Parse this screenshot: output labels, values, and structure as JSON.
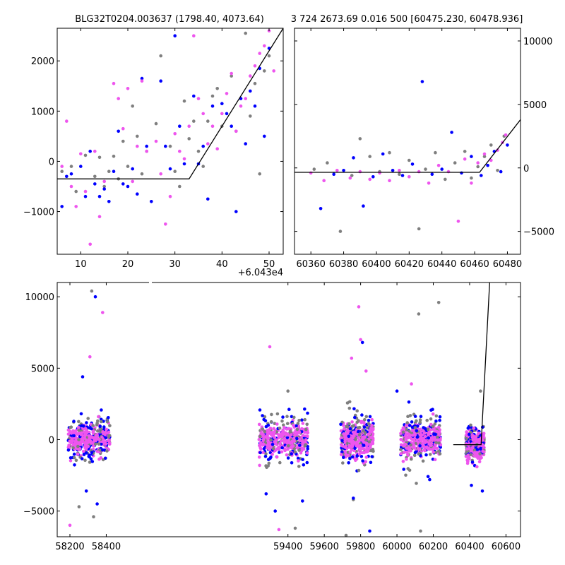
{
  "titles": {
    "left": "BLG32T0204.003637 (1798.40, 4073.64)",
    "right": "3 724 2673.69 0.016 500 [60475.230, 60478.936]"
  },
  "colors": {
    "band1": "#7f7f7f",
    "band2": "#0000ff",
    "band3": "#ee55ee",
    "model": "#000000"
  },
  "chart_data": [
    {
      "id": "zoom-left",
      "type": "scatter",
      "title": "BLG32T0204.003637 (1798.40, 4073.64)",
      "xlabel": "",
      "ylabel": "",
      "x_offset_label": "+6.043e4",
      "xlim": [
        5,
        53
      ],
      "ylim": [
        -1850,
        2650
      ],
      "xticks": [
        10,
        20,
        30,
        40,
        50
      ],
      "yticks": [
        -1000,
        0,
        1000,
        2000
      ],
      "model_line": {
        "x": [
          5,
          33,
          53
        ],
        "y": [
          -350,
          -350,
          2650
        ]
      },
      "series": [
        {
          "color": "#7f7f7f",
          "points": [
            [
              6,
              -200
            ],
            [
              8,
              -100
            ],
            [
              9,
              -600
            ],
            [
              11,
              120
            ],
            [
              13,
              -300
            ],
            [
              14,
              80
            ],
            [
              15,
              -500
            ],
            [
              16,
              -200
            ],
            [
              17,
              100
            ],
            [
              18,
              -350
            ],
            [
              19,
              400
            ],
            [
              20,
              -100
            ],
            [
              21,
              1100
            ],
            [
              22,
              500
            ],
            [
              23,
              -250
            ],
            [
              24,
              200
            ],
            [
              26,
              750
            ],
            [
              27,
              2100
            ],
            [
              29,
              300
            ],
            [
              30,
              -200
            ],
            [
              31,
              -500
            ],
            [
              32,
              1200
            ],
            [
              33,
              450
            ],
            [
              34,
              800
            ],
            [
              35,
              200
            ],
            [
              36,
              -100
            ],
            [
              37,
              800
            ],
            [
              38,
              1300
            ],
            [
              39,
              1450
            ],
            [
              40,
              700
            ],
            [
              42,
              1700
            ],
            [
              43,
              600
            ],
            [
              45,
              2550
            ],
            [
              46,
              900
            ],
            [
              47,
              1550
            ],
            [
              48,
              -250
            ],
            [
              49,
              1800
            ],
            [
              50,
              2100
            ]
          ]
        },
        {
          "color": "#0000ff",
          "points": [
            [
              6,
              -900
            ],
            [
              7,
              -300
            ],
            [
              8,
              -250
            ],
            [
              10,
              -100
            ],
            [
              11,
              -700
            ],
            [
              12,
              200
            ],
            [
              13,
              -450
            ],
            [
              14,
              -700
            ],
            [
              15,
              -550
            ],
            [
              16,
              -800
            ],
            [
              17,
              -200
            ],
            [
              18,
              600
            ],
            [
              19,
              -450
            ],
            [
              20,
              -500
            ],
            [
              21,
              -150
            ],
            [
              22,
              -650
            ],
            [
              23,
              1650
            ],
            [
              24,
              300
            ],
            [
              25,
              -800
            ],
            [
              27,
              1600
            ],
            [
              28,
              300
            ],
            [
              29,
              -150
            ],
            [
              30,
              2500
            ],
            [
              31,
              700
            ],
            [
              32,
              -50
            ],
            [
              34,
              1300
            ],
            [
              35,
              -50
            ],
            [
              36,
              300
            ],
            [
              37,
              -750
            ],
            [
              38,
              1100
            ],
            [
              40,
              1150
            ],
            [
              41,
              950
            ],
            [
              42,
              700
            ],
            [
              43,
              -1000
            ],
            [
              44,
              1250
            ],
            [
              45,
              350
            ],
            [
              46,
              1400
            ],
            [
              47,
              1100
            ],
            [
              48,
              1850
            ],
            [
              49,
              500
            ],
            [
              50,
              2250
            ]
          ]
        },
        {
          "color": "#ee55ee",
          "points": [
            [
              6,
              -100
            ],
            [
              7,
              800
            ],
            [
              8,
              -500
            ],
            [
              9,
              -900
            ],
            [
              10,
              150
            ],
            [
              11,
              -600
            ],
            [
              12,
              -1650
            ],
            [
              13,
              200
            ],
            [
              14,
              -1100
            ],
            [
              15,
              -400
            ],
            [
              17,
              1550
            ],
            [
              18,
              1250
            ],
            [
              19,
              650
            ],
            [
              20,
              1450
            ],
            [
              21,
              -400
            ],
            [
              22,
              300
            ],
            [
              23,
              1600
            ],
            [
              24,
              200
            ],
            [
              26,
              400
            ],
            [
              27,
              -250
            ],
            [
              28,
              -1250
            ],
            [
              29,
              -700
            ],
            [
              30,
              550
            ],
            [
              31,
              200
            ],
            [
              32,
              50
            ],
            [
              33,
              700
            ],
            [
              34,
              2500
            ],
            [
              35,
              1250
            ],
            [
              36,
              950
            ],
            [
              37,
              350
            ],
            [
              38,
              700
            ],
            [
              39,
              250
            ],
            [
              40,
              950
            ],
            [
              41,
              1350
            ],
            [
              42,
              1750
            ],
            [
              43,
              600
            ],
            [
              44,
              1100
            ],
            [
              45,
              1250
            ],
            [
              46,
              1700
            ],
            [
              47,
              1900
            ],
            [
              48,
              2150
            ],
            [
              49,
              2300
            ],
            [
              50,
              2600
            ],
            [
              51,
              1800
            ]
          ]
        }
      ]
    },
    {
      "id": "zoom-right",
      "type": "scatter",
      "title": "3 724 2673.69 0.016 500 [60475.230, 60478.936]",
      "xlabel": "",
      "ylabel": "",
      "xlim": [
        60350,
        60488
      ],
      "ylim": [
        -6800,
        11000
      ],
      "xticks": [
        60360,
        60380,
        60400,
        60420,
        60440,
        60460,
        60480
      ],
      "yticks": [
        -5000,
        0,
        5000,
        10000
      ],
      "model_line": {
        "x": [
          60350,
          60463,
          60488
        ],
        "y": [
          -350,
          -350,
          3800
        ]
      },
      "series": [
        {
          "color": "#7f7f7f",
          "points": [
            [
              60362,
              -100
            ],
            [
              60370,
              400
            ],
            [
              60378,
              -5000
            ],
            [
              60385,
              -600
            ],
            [
              60390,
              2300
            ],
            [
              60396,
              900
            ],
            [
              60402,
              -300
            ],
            [
              60408,
              1200
            ],
            [
              60414,
              -500
            ],
            [
              60420,
              600
            ],
            [
              60426,
              -4800
            ],
            [
              60430,
              -100
            ],
            [
              60436,
              1200
            ],
            [
              60442,
              -900
            ],
            [
              60448,
              400
            ],
            [
              60454,
              1300
            ],
            [
              60458,
              -800
            ],
            [
              60462,
              100
            ],
            [
              60466,
              900
            ],
            [
              60470,
              1800
            ],
            [
              60474,
              -200
            ],
            [
              60478,
              2500
            ]
          ]
        },
        {
          "color": "#0000ff",
          "points": [
            [
              60366,
              -3200
            ],
            [
              60374,
              -500
            ],
            [
              60380,
              -200
            ],
            [
              60386,
              800
            ],
            [
              60392,
              -3000
            ],
            [
              60398,
              -700
            ],
            [
              60404,
              1100
            ],
            [
              60410,
              -200
            ],
            [
              60416,
              -600
            ],
            [
              60422,
              300
            ],
            [
              60428,
              6800
            ],
            [
              60434,
              -500
            ],
            [
              60440,
              -100
            ],
            [
              60446,
              2800
            ],
            [
              60452,
              -400
            ],
            [
              60458,
              900
            ],
            [
              60464,
              -600
            ],
            [
              60468,
              200
            ],
            [
              60472,
              1300
            ],
            [
              60476,
              -300
            ],
            [
              60480,
              1800
            ]
          ]
        },
        {
          "color": "#ee55ee",
          "points": [
            [
              60360,
              -400
            ],
            [
              60368,
              -1000
            ],
            [
              60376,
              -200
            ],
            [
              60384,
              -800
            ],
            [
              60390,
              -300
            ],
            [
              60396,
              -900
            ],
            [
              60402,
              -400
            ],
            [
              60408,
              -1000
            ],
            [
              60414,
              -200
            ],
            [
              60420,
              -700
            ],
            [
              60426,
              -300
            ],
            [
              60432,
              -1200
            ],
            [
              60438,
              200
            ],
            [
              60444,
              -300
            ],
            [
              60450,
              -4200
            ],
            [
              60454,
              700
            ],
            [
              60458,
              -1200
            ],
            [
              60462,
              400
            ],
            [
              60466,
              1100
            ],
            [
              60470,
              600
            ],
            [
              60474,
              1400
            ],
            [
              60477,
              2000
            ],
            [
              60479,
              2600
            ]
          ]
        }
      ]
    },
    {
      "id": "full-lightcurve",
      "type": "scatter",
      "title": "",
      "xlabel": "",
      "ylabel": "",
      "xlim": [
        58130,
        60680
      ],
      "ylim": [
        -6800,
        11000
      ],
      "xticks": [
        58200,
        58400,
        59400,
        59600,
        59800,
        60000,
        60200,
        60400,
        60600
      ],
      "yticks": [
        -5000,
        0,
        5000,
        10000
      ],
      "clusters": [
        {
          "x": [
            58190,
            58420
          ]
        },
        {
          "x": [
            59240,
            59510
          ]
        },
        {
          "x": [
            59690,
            59870
          ]
        },
        {
          "x": [
            60020,
            60240
          ]
        },
        {
          "x": [
            60380,
            60480
          ]
        }
      ],
      "model_line": {
        "x": [
          60310,
          60463,
          60510
        ],
        "y": [
          -350,
          -350,
          11000
        ]
      },
      "series": [
        {
          "color": "#7f7f7f",
          "points": [
            [
              58320,
              10400
            ],
            [
              58250,
              -4700
            ],
            [
              58330,
              -5400
            ],
            [
              59400,
              3400
            ],
            [
              59440,
              -6200
            ],
            [
              59720,
              -6700
            ],
            [
              59760,
              -4200
            ],
            [
              60120,
              8800
            ],
            [
              60130,
              -6400
            ],
            [
              60230,
              9600
            ],
            [
              60460,
              3400
            ]
          ]
        },
        {
          "color": "#0000ff",
          "points": [
            [
              58340,
              10000
            ],
            [
              58270,
              4400
            ],
            [
              58290,
              -3600
            ],
            [
              58350,
              -4500
            ],
            [
              59280,
              -3800
            ],
            [
              59330,
              -5000
            ],
            [
              59480,
              -4300
            ],
            [
              59760,
              -4100
            ],
            [
              59810,
              6800
            ],
            [
              59850,
              -6400
            ],
            [
              60000,
              3400
            ],
            [
              60180,
              -2800
            ],
            [
              60410,
              -3200
            ],
            [
              60470,
              -3600
            ]
          ]
        },
        {
          "color": "#ee55ee",
          "points": [
            [
              58380,
              8900
            ],
            [
              58200,
              -6000
            ],
            [
              58310,
              5800
            ],
            [
              59300,
              6500
            ],
            [
              59350,
              -6300
            ],
            [
              59750,
              5700
            ],
            [
              59790,
              9300
            ],
            [
              59800,
              7000
            ],
            [
              59830,
              4800
            ],
            [
              60080,
              3900
            ],
            [
              60210,
              -1400
            ],
            [
              60440,
              -1900
            ]
          ]
        }
      ]
    }
  ]
}
